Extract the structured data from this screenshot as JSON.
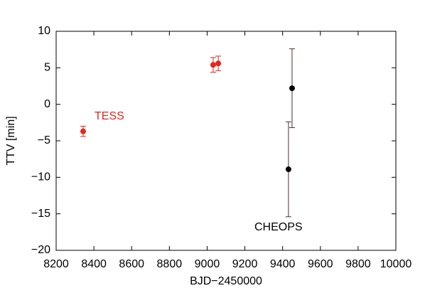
{
  "chart_data": {
    "type": "scatter",
    "xlabel": "BJD−2450000",
    "ylabel": "TTV [min]",
    "xlim": [
      8200,
      10000
    ],
    "ylim": [
      -20,
      10
    ],
    "xticks": [
      8200,
      8400,
      8600,
      8800,
      9000,
      9200,
      9400,
      9600,
      9800,
      10000
    ],
    "yticks": [
      {
        "value": -20,
        "label": "−20"
      },
      {
        "value": -15,
        "label": "−15"
      },
      {
        "value": -10,
        "label": "−10"
      },
      {
        "value": -5,
        "label": "−5"
      },
      0,
      5,
      10
    ],
    "series": [
      {
        "name": "TESS",
        "color": "#e8251e",
        "x": [
          8343,
          9032,
          9059
        ],
        "values": [
          -3.7,
          5.4,
          5.6
        ],
        "errors": [
          0.7,
          1.0,
          1.0
        ]
      },
      {
        "name": "CHEOPS",
        "color": "#000000",
        "x": [
          9431,
          9450
        ],
        "values": [
          -8.9,
          2.2
        ],
        "errors": [
          6.5,
          5.4
        ]
      }
    ]
  }
}
